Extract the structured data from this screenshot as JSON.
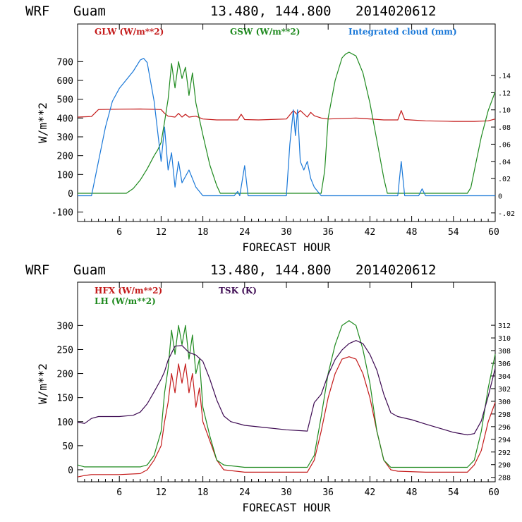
{
  "chart_data": [
    {
      "type": "line",
      "header": {
        "model": "WRF",
        "station": "Guam",
        "coords": "13.480, 144.800",
        "run": "2014020612"
      },
      "xlabel": "FORECAST HOUR",
      "ylabel": "W/m**2",
      "xlim": [
        0,
        60
      ],
      "ylim": [
        -150,
        900
      ],
      "xticks": [
        6,
        12,
        18,
        24,
        30,
        36,
        42,
        48,
        54,
        60
      ],
      "yticks": [
        -100,
        0,
        100,
        200,
        300,
        400,
        500,
        600,
        700
      ],
      "y2lim": [
        -0.03,
        0.2
      ],
      "y2ticks": [
        -0.02,
        0,
        0.02,
        0.04,
        0.06,
        0.08,
        0.1,
        0.12,
        0.14
      ],
      "y2ticklabels": [
        "-.02",
        "0",
        ".02",
        ".04",
        ".06",
        ".08",
        ".10",
        ".12",
        ".14"
      ],
      "series": [
        {
          "name": "GLW (W/m**2)",
          "color": "#c41a1a",
          "axis": "left",
          "x": [
            0,
            2,
            3,
            6,
            9,
            12,
            12.5,
            13,
            14,
            14.5,
            15,
            15.5,
            16,
            17,
            18,
            20,
            23,
            23.5,
            24,
            26,
            30,
            31,
            31.5,
            32,
            33,
            33.5,
            34,
            35,
            36,
            40,
            44,
            46,
            46.5,
            47,
            50,
            54,
            57,
            59,
            60
          ],
          "y": [
            405,
            408,
            445,
            447,
            448,
            445,
            425,
            410,
            405,
            425,
            405,
            420,
            405,
            410,
            395,
            390,
            390,
            420,
            392,
            390,
            395,
            440,
            420,
            440,
            405,
            430,
            412,
            400,
            395,
            400,
            390,
            390,
            440,
            392,
            385,
            382,
            382,
            385,
            395
          ]
        },
        {
          "name": "GSW (W/m**2)",
          "color": "#1f8a1f",
          "axis": "left",
          "x": [
            0,
            7,
            8,
            9,
            10,
            11,
            11.5,
            12,
            12.5,
            13,
            13.5,
            14,
            14.5,
            15,
            15.5,
            16,
            16.5,
            17,
            18,
            19,
            20,
            20.5,
            35,
            35.5,
            36,
            37,
            38,
            38.5,
            39,
            40,
            41,
            42,
            43,
            44,
            44.5,
            56,
            56.5,
            57,
            58,
            59,
            60
          ],
          "y": [
            0,
            0,
            25,
            70,
            130,
            200,
            230,
            270,
            380,
            500,
            690,
            560,
            700,
            610,
            670,
            520,
            640,
            480,
            310,
            150,
            40,
            0,
            0,
            120,
            400,
            600,
            720,
            740,
            750,
            730,
            640,
            480,
            280,
            80,
            0,
            0,
            30,
            120,
            300,
            440,
            540
          ]
        },
        {
          "name": "Integrated cloud (mm)",
          "color": "#1a78d8",
          "axis": "right",
          "x": [
            0,
            2,
            3,
            4,
            5,
            6,
            7,
            8,
            9,
            9.5,
            10,
            11,
            12,
            12.5,
            13,
            13.5,
            14,
            14.5,
            15,
            16,
            17,
            18,
            22.5,
            23,
            23.3,
            24,
            24.5,
            30,
            30.5,
            31,
            31.3,
            31.6,
            32,
            32.5,
            33,
            33.5,
            34,
            35,
            46,
            46.5,
            47,
            49,
            49.5,
            50,
            56,
            60
          ],
          "y": [
            0,
            0,
            0.04,
            0.08,
            0.11,
            0.125,
            0.135,
            0.145,
            0.158,
            0.16,
            0.155,
            0.11,
            0.04,
            0.08,
            0.03,
            0.05,
            0.01,
            0.04,
            0.015,
            0.03,
            0.01,
            0,
            0,
            0.005,
            0,
            0.035,
            0,
            0,
            0.06,
            0.1,
            0.07,
            0.1,
            0.04,
            0.03,
            0.04,
            0.02,
            0.01,
            0,
            0,
            0.04,
            0,
            0,
            0.008,
            0,
            0,
            0
          ]
        }
      ]
    },
    {
      "type": "line",
      "header": {
        "model": "WRF",
        "station": "Guam",
        "coords": "13.480, 144.800",
        "run": "2014020612"
      },
      "xlabel": "FORECAST HOUR",
      "ylabel": "W/m**2",
      "xlim": [
        0,
        60
      ],
      "ylim": [
        -25,
        390
      ],
      "xticks": [
        6,
        12,
        18,
        24,
        30,
        36,
        42,
        48,
        54,
        60
      ],
      "yticks": [
        0,
        50,
        100,
        150,
        200,
        250,
        300
      ],
      "y2lim": [
        287.3,
        318.8
      ],
      "y2ticks": [
        288,
        290,
        292,
        294,
        296,
        298,
        300,
        302,
        304,
        306,
        308,
        310,
        312
      ],
      "series": [
        {
          "name": "HFX (W/m**2)",
          "color": "#c41a1a",
          "axis": "left",
          "x": [
            0,
            1,
            2,
            6,
            9,
            10,
            11,
            12,
            12.5,
            13,
            13.5,
            14,
            14.5,
            15,
            15.5,
            16,
            16.5,
            17,
            17.5,
            18,
            19,
            20,
            21,
            24,
            30,
            33,
            34,
            35,
            36,
            37,
            38,
            39,
            40,
            41,
            42,
            43,
            44,
            45,
            46,
            50,
            56,
            57,
            58,
            59,
            60
          ],
          "y": [
            -15,
            -12,
            -10,
            -10,
            -8,
            0,
            20,
            50,
            100,
            140,
            200,
            160,
            220,
            180,
            220,
            160,
            200,
            130,
            170,
            100,
            60,
            20,
            0,
            -5,
            -5,
            -5,
            20,
            80,
            150,
            200,
            230,
            235,
            230,
            200,
            150,
            80,
            20,
            0,
            -3,
            -5,
            -5,
            10,
            40,
            100,
            140
          ]
        },
        {
          "name": "LH (W/m**2)",
          "color": "#1f8a1f",
          "axis": "left",
          "x": [
            0,
            1,
            2,
            6,
            9,
            10,
            11,
            12,
            12.5,
            13,
            13.5,
            14,
            14.5,
            15,
            15.5,
            16,
            16.5,
            17,
            17.5,
            18,
            19,
            20,
            21,
            24,
            30,
            33,
            34,
            35,
            36,
            37,
            38,
            39,
            40,
            41,
            42,
            43,
            44,
            45,
            46,
            50,
            56,
            57,
            58,
            59,
            60
          ],
          "y": [
            10,
            6,
            6,
            6,
            6,
            10,
            30,
            80,
            160,
            210,
            290,
            240,
            300,
            260,
            300,
            230,
            280,
            200,
            230,
            130,
            70,
            20,
            10,
            5,
            5,
            5,
            30,
            110,
            200,
            260,
            300,
            310,
            300,
            250,
            180,
            80,
            20,
            5,
            5,
            5,
            5,
            20,
            80,
            170,
            240
          ]
        },
        {
          "name": "TSK (K)",
          "color": "#3d0a52",
          "axis": "right",
          "x": [
            0,
            1,
            2,
            3,
            6,
            8,
            9,
            10,
            11,
            12,
            12.5,
            13,
            14,
            15,
            16,
            17,
            18,
            19,
            20,
            21,
            22,
            24,
            30,
            33,
            34,
            35,
            36,
            37,
            38,
            39,
            40,
            41,
            42,
            43,
            44,
            45,
            46,
            48,
            50,
            54,
            56,
            57,
            58,
            59,
            60
          ],
          "y": [
            296.7,
            296.5,
            297.3,
            297.6,
            297.6,
            297.8,
            298.3,
            299.6,
            301.5,
            303.5,
            304.7,
            306.5,
            308.7,
            308.8,
            307.7,
            307.3,
            306.3,
            303.5,
            300.2,
            297.7,
            296.8,
            296.2,
            295.5,
            295.3,
            299.8,
            301.1,
            304.2,
            306.6,
            308.1,
            309.1,
            309.6,
            309.1,
            307.4,
            304.9,
            301.1,
            298.2,
            297.6,
            297.1,
            296.4,
            295.1,
            294.7,
            294.9,
            296.9,
            300.8,
            305.2
          ]
        }
      ]
    }
  ]
}
